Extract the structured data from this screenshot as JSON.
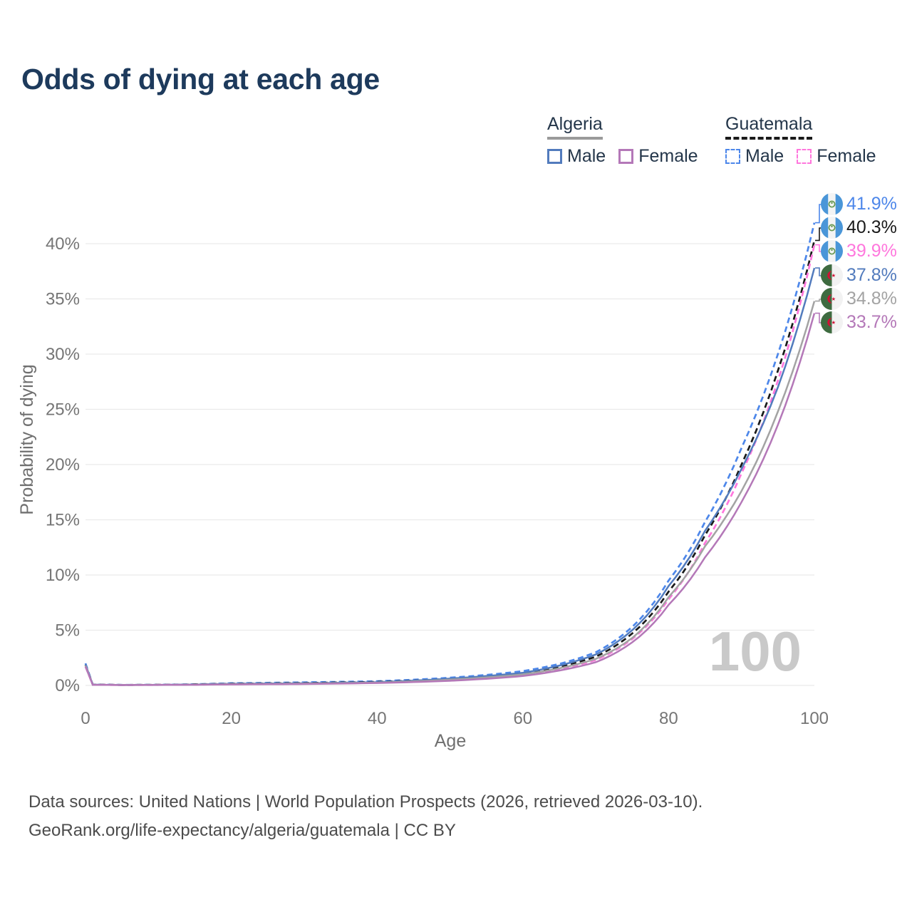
{
  "title": "Odds of dying at each age",
  "legend": {
    "groups": [
      {
        "id": "algeria",
        "label": "Algeria",
        "line_style": "solid",
        "underline_color": "#9a9a9a",
        "items": [
          {
            "label": "Male",
            "style": "solid",
            "color": "#527bbd"
          },
          {
            "label": "Female",
            "style": "solid",
            "color": "#b478b8"
          }
        ]
      },
      {
        "id": "guatemala",
        "label": "Guatemala",
        "line_style": "dashed",
        "underline_color": "#1a1a1a",
        "items": [
          {
            "label": "Male",
            "style": "dashed",
            "color": "#4d87ea"
          },
          {
            "label": "Female",
            "style": "dashed",
            "color": "#ff77dd"
          }
        ]
      }
    ]
  },
  "chart_data": {
    "type": "line",
    "title": "Odds of dying at each age",
    "xlabel": "Age",
    "ylabel": "Probability of dying",
    "x_ticks": [
      0,
      20,
      40,
      60,
      80,
      100
    ],
    "y_ticks_percent": [
      0,
      5,
      10,
      15,
      20,
      25,
      30,
      35,
      40
    ],
    "xlim": [
      0,
      100
    ],
    "ylim_percent": [
      0,
      43.5
    ],
    "grid": "horizontal",
    "legend_position": "top-right",
    "watermark": "100",
    "x": [
      0,
      1,
      5,
      10,
      20,
      30,
      40,
      50,
      55,
      60,
      65,
      70,
      75,
      80,
      85,
      90,
      95,
      100
    ],
    "series": [
      {
        "name": "Guatemala Male",
        "country": "guatemala",
        "sex": "Male",
        "color": "#4d87ea",
        "dash": "dashed",
        "end_label": "41.9%",
        "values": [
          2.0,
          0.08,
          0.05,
          0.06,
          0.2,
          0.28,
          0.38,
          0.7,
          0.95,
          1.3,
          1.95,
          3.0,
          5.3,
          9.5,
          14.8,
          21.5,
          30.0,
          41.9
        ]
      },
      {
        "name": "Guatemala",
        "country": "guatemala",
        "sex": "All",
        "color": "#1a1a1a",
        "dash": "dashed",
        "end_label": "40.3%",
        "values": [
          1.85,
          0.07,
          0.045,
          0.055,
          0.16,
          0.22,
          0.32,
          0.6,
          0.8,
          1.1,
          1.7,
          2.6,
          4.7,
          8.5,
          13.6,
          20.0,
          28.5,
          40.3
        ]
      },
      {
        "name": "Guatemala Female",
        "country": "guatemala",
        "sex": "Female",
        "color": "#ff77dd",
        "dash": "dashed",
        "end_label": "39.9%",
        "values": [
          1.7,
          0.06,
          0.04,
          0.05,
          0.11,
          0.16,
          0.26,
          0.5,
          0.7,
          0.95,
          1.5,
          2.3,
          4.2,
          7.8,
          12.9,
          19.2,
          27.6,
          39.9
        ]
      },
      {
        "name": "Algeria Male",
        "country": "algeria",
        "sex": "Male",
        "color": "#527bbd",
        "dash": "solid",
        "end_label": "37.8%",
        "values": [
          1.9,
          0.07,
          0.04,
          0.05,
          0.15,
          0.2,
          0.3,
          0.62,
          0.85,
          1.15,
          1.8,
          2.8,
          5.0,
          9.0,
          14.0,
          19.6,
          27.0,
          37.8
        ]
      },
      {
        "name": "Algeria",
        "country": "algeria",
        "sex": "All",
        "color": "#a3a3a3",
        "dash": "solid",
        "end_label": "34.8%",
        "values": [
          1.8,
          0.065,
          0.038,
          0.045,
          0.12,
          0.17,
          0.26,
          0.52,
          0.72,
          1.0,
          1.55,
          2.4,
          4.3,
          8.0,
          12.6,
          17.6,
          24.8,
          34.8
        ]
      },
      {
        "name": "Algeria Female",
        "country": "algeria",
        "sex": "Female",
        "color": "#b478b8",
        "dash": "solid",
        "end_label": "33.7%",
        "values": [
          1.7,
          0.06,
          0.035,
          0.04,
          0.09,
          0.13,
          0.22,
          0.42,
          0.6,
          0.85,
          1.35,
          2.1,
          3.9,
          7.3,
          11.6,
          16.6,
          23.6,
          33.7
        ]
      }
    ],
    "flag_colors": {
      "guatemala": {
        "stripe": "#4a96d8",
        "middle": "#f4f4f4",
        "emblem": "#6a9a55"
      },
      "algeria": {
        "left": "#3e6b40",
        "right": "#f2f2f2",
        "emblem": "#d21034"
      }
    }
  },
  "footer": {
    "line1": "Data sources: United Nations | World Population Prospects (2026, retrieved 2026-03-10).",
    "line2": "GeoRank.org/life-expectancy/algeria/guatemala | CC BY"
  }
}
